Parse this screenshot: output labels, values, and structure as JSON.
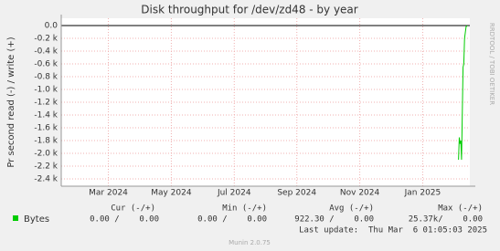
{
  "chart_data": {
    "type": "line",
    "title": "Disk throughput for /dev/zd48 - by year",
    "y_label": "Pr second read (-) / write (+)",
    "side_label": "RRDTOOL / TOBI OETIKER",
    "xlim": [
      2024.083,
      2025.167
    ],
    "xticks": [
      {
        "value": 2024.208,
        "label": "Mar 2024"
      },
      {
        "value": 2024.375,
        "label": "May 2024"
      },
      {
        "value": 2024.542,
        "label": "Jul 2024"
      },
      {
        "value": 2024.708,
        "label": "Sep 2024"
      },
      {
        "value": 2024.875,
        "label": "Nov 2024"
      },
      {
        "value": 2025.042,
        "label": "Jan 2025"
      }
    ],
    "ylim": [
      -2400,
      0
    ],
    "yticks": [
      {
        "value": 0,
        "label": "0.0"
      },
      {
        "value": -200,
        "label": "-0.2 k"
      },
      {
        "value": -400,
        "label": "-0.4 k"
      },
      {
        "value": -600,
        "label": "-0.6 k"
      },
      {
        "value": -800,
        "label": "-0.8 k"
      },
      {
        "value": -1000,
        "label": "-1.0 k"
      },
      {
        "value": -1200,
        "label": "-1.2 k"
      },
      {
        "value": -1400,
        "label": "-1.4 k"
      },
      {
        "value": -1600,
        "label": "-1.6 k"
      },
      {
        "value": -1800,
        "label": "-1.8 k"
      },
      {
        "value": -2000,
        "label": "-2.0 k"
      },
      {
        "value": -2200,
        "label": "-2.2 k"
      },
      {
        "value": -2400,
        "label": "-2.4 k"
      }
    ],
    "grid": true,
    "series": [
      {
        "name": "Bytes",
        "color": "#00cc00",
        "x": [
          2025.137,
          2025.139,
          2025.141,
          2025.143,
          2025.145,
          2025.149,
          2025.151,
          2025.153,
          2025.157,
          2025.16
        ],
        "values": [
          -2100,
          -1750,
          -1850,
          -1800,
          -2100,
          -650,
          -600,
          -200,
          -20,
          0
        ]
      }
    ],
    "legend_table": {
      "headers": [
        "Cur (-/+)",
        "Min (-/+)",
        "Avg (-/+)",
        "Max (-/+)"
      ],
      "row": [
        "0.00 /    0.00",
        "0.00 /    0.00",
        "922.30 /    0.00",
        "25.37k/    0.00"
      ]
    },
    "last_update": "Last update:  Thu Mar  6 01:05:03 2025",
    "footer": "Munin 2.0.75"
  }
}
